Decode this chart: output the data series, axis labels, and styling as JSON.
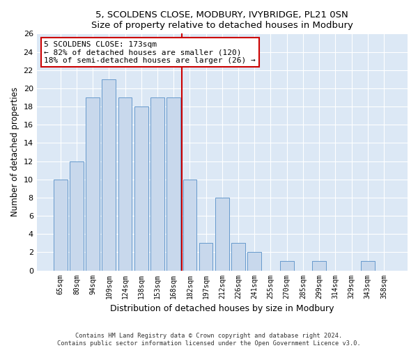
{
  "title1": "5, SCOLDENS CLOSE, MODBURY, IVYBRIDGE, PL21 0SN",
  "title2": "Size of property relative to detached houses in Modbury",
  "xlabel": "Distribution of detached houses by size in Modbury",
  "ylabel": "Number of detached properties",
  "categories": [
    "65sqm",
    "80sqm",
    "94sqm",
    "109sqm",
    "124sqm",
    "138sqm",
    "153sqm",
    "168sqm",
    "182sqm",
    "197sqm",
    "212sqm",
    "226sqm",
    "241sqm",
    "255sqm",
    "270sqm",
    "285sqm",
    "299sqm",
    "314sqm",
    "329sqm",
    "343sqm",
    "358sqm"
  ],
  "values": [
    10,
    12,
    19,
    21,
    19,
    18,
    19,
    19,
    10,
    3,
    8,
    3,
    2,
    0,
    1,
    0,
    1,
    0,
    0,
    1,
    0
  ],
  "bar_color": "#c8d8ec",
  "bar_edge_color": "#6699cc",
  "vline_index": 7.5,
  "vline_color": "#cc0000",
  "annotation_title": "5 SCOLDENS CLOSE: 173sqm",
  "annotation_line1": "← 82% of detached houses are smaller (120)",
  "annotation_line2": "18% of semi-detached houses are larger (26) →",
  "annotation_box_color": "#ffffff",
  "annotation_border_color": "#cc0000",
  "ylim": [
    0,
    26
  ],
  "yticks": [
    0,
    2,
    4,
    6,
    8,
    10,
    12,
    14,
    16,
    18,
    20,
    22,
    24,
    26
  ],
  "fig_bg_color": "#ffffff",
  "plot_bg_color": "#dce8f5",
  "grid_color": "#ffffff",
  "footer1": "Contains HM Land Registry data © Crown copyright and database right 2024.",
  "footer2": "Contains public sector information licensed under the Open Government Licence v3.0."
}
